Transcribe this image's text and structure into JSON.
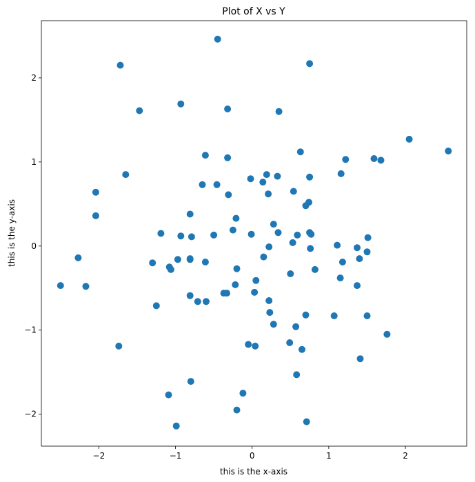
{
  "chart_data": {
    "type": "scatter",
    "title": "Plot of X vs Y",
    "xlabel": "this is the x-axis",
    "ylabel": "this is the y-axis",
    "xlim": [
      -2.75,
      2.8
    ],
    "ylim": [
      -2.38,
      2.68
    ],
    "xticks": [
      -2,
      -1,
      0,
      1,
      2
    ],
    "yticks": [
      -2,
      -1,
      0,
      1,
      2
    ],
    "xtick_labels": [
      "−2",
      "−1",
      "0",
      "1",
      "2"
    ],
    "ytick_labels": [
      "−2",
      "−1",
      "0",
      "1",
      "2"
    ],
    "grid": false,
    "marker_color": "#1f77b4",
    "points": [
      [
        -0.45,
        2.46
      ],
      [
        0.75,
        2.17
      ],
      [
        -1.72,
        2.15
      ],
      [
        -0.93,
        1.69
      ],
      [
        -1.47,
        1.61
      ],
      [
        -0.32,
        1.63
      ],
      [
        0.35,
        1.6
      ],
      [
        2.05,
        1.27
      ],
      [
        2.56,
        1.13
      ],
      [
        0.63,
        1.12
      ],
      [
        -0.61,
        1.08
      ],
      [
        -0.32,
        1.05
      ],
      [
        1.22,
        1.03
      ],
      [
        1.59,
        1.04
      ],
      [
        1.68,
        1.02
      ],
      [
        1.16,
        0.86
      ],
      [
        -1.65,
        0.85
      ],
      [
        0.19,
        0.85
      ],
      [
        0.33,
        0.83
      ],
      [
        0.75,
        0.82
      ],
      [
        -0.02,
        0.8
      ],
      [
        0.14,
        0.76
      ],
      [
        -0.65,
        0.73
      ],
      [
        -0.46,
        0.73
      ],
      [
        0.54,
        0.65
      ],
      [
        -2.04,
        0.64
      ],
      [
        0.21,
        0.62
      ],
      [
        -0.31,
        0.61
      ],
      [
        0.74,
        0.52
      ],
      [
        0.7,
        0.48
      ],
      [
        -0.81,
        0.38
      ],
      [
        -2.04,
        0.36
      ],
      [
        -0.21,
        0.33
      ],
      [
        0.28,
        0.26
      ],
      [
        -0.25,
        0.19
      ],
      [
        0.34,
        0.16
      ],
      [
        0.75,
        0.16
      ],
      [
        -1.19,
        0.15
      ],
      [
        0.59,
        0.13
      ],
      [
        -0.5,
        0.13
      ],
      [
        0.77,
        0.14
      ],
      [
        -0.01,
        0.14
      ],
      [
        -0.93,
        0.12
      ],
      [
        -0.79,
        0.11
      ],
      [
        1.51,
        0.1
      ],
      [
        0.53,
        0.04
      ],
      [
        1.11,
        0.01
      ],
      [
        0.22,
        -0.01
      ],
      [
        1.37,
        -0.02
      ],
      [
        0.76,
        -0.03
      ],
      [
        1.5,
        -0.07
      ],
      [
        0.15,
        -0.13
      ],
      [
        -2.27,
        -0.14
      ],
      [
        1.4,
        -0.15
      ],
      [
        -0.97,
        -0.16
      ],
      [
        -0.81,
        -0.16
      ],
      [
        -0.81,
        -0.15
      ],
      [
        1.18,
        -0.19
      ],
      [
        -0.61,
        -0.19
      ],
      [
        -1.3,
        -0.2
      ],
      [
        -1.08,
        -0.25
      ],
      [
        -1.06,
        -0.28
      ],
      [
        -0.2,
        -0.27
      ],
      [
        0.82,
        -0.28
      ],
      [
        0.5,
        -0.33
      ],
      [
        1.15,
        -0.38
      ],
      [
        0.05,
        -0.41
      ],
      [
        -2.5,
        -0.47
      ],
      [
        1.37,
        -0.47
      ],
      [
        -0.22,
        -0.46
      ],
      [
        -2.17,
        -0.48
      ],
      [
        0.03,
        -0.55
      ],
      [
        -0.37,
        -0.56
      ],
      [
        -0.33,
        -0.56
      ],
      [
        -0.81,
        -0.59
      ],
      [
        0.22,
        -0.65
      ],
      [
        -0.71,
        -0.66
      ],
      [
        -0.6,
        -0.66
      ],
      [
        -1.25,
        -0.71
      ],
      [
        0.23,
        -0.79
      ],
      [
        0.7,
        -0.82
      ],
      [
        1.07,
        -0.83
      ],
      [
        1.5,
        -0.83
      ],
      [
        0.28,
        -0.93
      ],
      [
        0.57,
        -0.96
      ],
      [
        1.76,
        -1.05
      ],
      [
        0.49,
        -1.15
      ],
      [
        -0.05,
        -1.17
      ],
      [
        -1.74,
        -1.19
      ],
      [
        0.04,
        -1.19
      ],
      [
        0.65,
        -1.23
      ],
      [
        1.41,
        -1.34
      ],
      [
        0.58,
        -1.53
      ],
      [
        -0.8,
        -1.61
      ],
      [
        -0.12,
        -1.75
      ],
      [
        -1.09,
        -1.77
      ],
      [
        -0.2,
        -1.95
      ],
      [
        0.71,
        -2.09
      ],
      [
        -0.99,
        -2.14
      ]
    ]
  }
}
